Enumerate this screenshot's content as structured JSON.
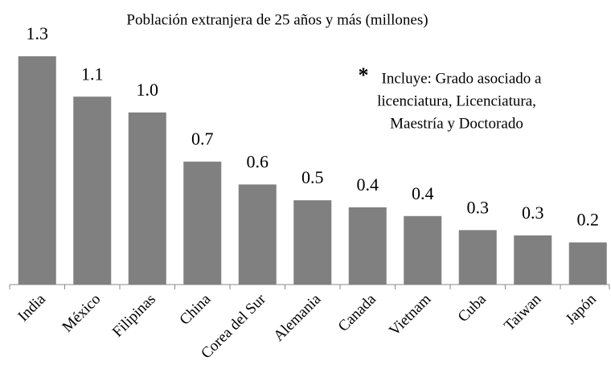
{
  "chart_data": {
    "type": "bar",
    "title": "Población extranjera de 25 años y más (millones)",
    "annotation_marker": "*",
    "annotation": [
      "Incluye: Grado asociado a",
      "licenciatura, Licenciatura,",
      "Maestría y Doctorado"
    ],
    "categories": [
      "India",
      "México",
      "Filipinas",
      "China",
      "Corea del Sur",
      "Alemania",
      "Canada",
      "Vietnam",
      "Cuba",
      "Taiwan",
      "Japón"
    ],
    "values": [
      1.3,
      1.07,
      0.98,
      0.7,
      0.57,
      0.48,
      0.44,
      0.39,
      0.31,
      0.28,
      0.24
    ],
    "value_labels": [
      "1.3",
      "1.1",
      "1.0",
      "0.7",
      "0.6",
      "0.5",
      "0.4",
      "0.4",
      "0.3",
      "0.3",
      "0.2"
    ],
    "color": "#808080",
    "ylim": [
      0,
      1.3
    ]
  }
}
